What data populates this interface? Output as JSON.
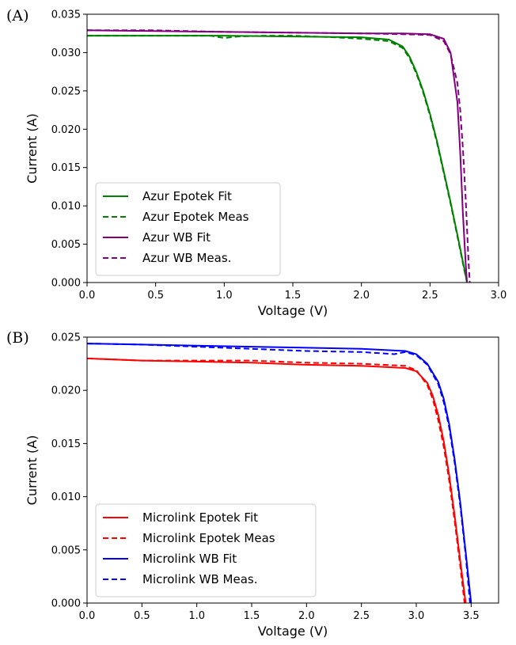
{
  "chart_data": [
    {
      "type": "line",
      "panel_label": "(A)",
      "xlabel": "Voltage (V)",
      "ylabel": "Current (A)",
      "xlim": [
        0,
        3.0
      ],
      "ylim": [
        0,
        0.035
      ],
      "xticks": [
        "0.0",
        "0.5",
        "1.0",
        "1.5",
        "2.0",
        "2.5",
        "3.0"
      ],
      "yticks": [
        "0.000",
        "0.005",
        "0.010",
        "0.015",
        "0.020",
        "0.025",
        "0.030",
        "0.035"
      ],
      "grid": false,
      "legend_position": "lower-left",
      "series": [
        {
          "name": "Azur Epotek Fit",
          "color": "#008000",
          "dash": "solid",
          "x": [
            0,
            0.5,
            1.0,
            1.5,
            2.0,
            2.2,
            2.3,
            2.35,
            2.4,
            2.45,
            2.5,
            2.55,
            2.6,
            2.65,
            2.7,
            2.75,
            2.77
          ],
          "y": [
            0.0322,
            0.0322,
            0.0322,
            0.0321,
            0.032,
            0.0317,
            0.0308,
            0.0295,
            0.0275,
            0.025,
            0.022,
            0.0185,
            0.0145,
            0.0105,
            0.0062,
            0.0018,
            0.0
          ]
        },
        {
          "name": "Azur Epotek Meas",
          "color": "#008000",
          "dash": "dashed",
          "x": [
            0,
            0.5,
            0.9,
            1.0,
            1.1,
            1.3,
            1.5,
            1.8,
            2.0,
            2.2,
            2.3,
            2.35,
            2.4,
            2.45,
            2.5,
            2.55,
            2.6,
            2.65,
            2.7,
            2.75,
            2.77
          ],
          "y": [
            0.0322,
            0.0322,
            0.0322,
            0.0319,
            0.0321,
            0.0322,
            0.0322,
            0.032,
            0.0318,
            0.0315,
            0.0306,
            0.0293,
            0.0273,
            0.0248,
            0.0218,
            0.0183,
            0.0143,
            0.0103,
            0.006,
            0.0016,
            0.0
          ]
        },
        {
          "name": "Azur WB Fit",
          "color": "#800080",
          "dash": "solid",
          "x": [
            0,
            0.5,
            1.0,
            1.5,
            2.0,
            2.3,
            2.5,
            2.6,
            2.65,
            2.7,
            2.72,
            2.74,
            2.76,
            2.77
          ],
          "y": [
            0.0329,
            0.0328,
            0.0327,
            0.0326,
            0.0325,
            0.0325,
            0.0324,
            0.0318,
            0.03,
            0.0235,
            0.017,
            0.009,
            0.0025,
            0.0
          ]
        },
        {
          "name": "Azur WB Meas.",
          "color": "#800080",
          "dash": "dashed",
          "x": [
            0,
            0.5,
            1.0,
            1.5,
            2.0,
            2.3,
            2.5,
            2.6,
            2.65,
            2.7,
            2.72,
            2.74,
            2.76,
            2.78,
            2.79
          ],
          "y": [
            0.0329,
            0.0329,
            0.0327,
            0.0326,
            0.0325,
            0.0324,
            0.0323,
            0.0315,
            0.0298,
            0.026,
            0.0225,
            0.0175,
            0.011,
            0.003,
            0.0
          ]
        }
      ]
    },
    {
      "type": "line",
      "panel_label": "(B)",
      "xlabel": "Voltage (V)",
      "ylabel": "Current (A)",
      "xlim": [
        0,
        3.75
      ],
      "ylim": [
        0,
        0.025
      ],
      "xticks": [
        "0.0",
        "0.5",
        "1.0",
        "1.5",
        "2.0",
        "2.5",
        "3.0",
        "3.5"
      ],
      "yticks": [
        "0.000",
        "0.005",
        "0.010",
        "0.015",
        "0.020",
        "0.025"
      ],
      "grid": false,
      "legend_position": "lower-left",
      "series": [
        {
          "name": "Microlink Epotek Fit",
          "color": "#ff0000",
          "dash": "solid",
          "x": [
            0,
            0.5,
            1.0,
            1.5,
            2.0,
            2.5,
            2.9,
            3.0,
            3.1,
            3.15,
            3.2,
            3.25,
            3.3,
            3.35,
            3.4,
            3.45
          ],
          "y": [
            0.023,
            0.0228,
            0.0227,
            0.0226,
            0.0224,
            0.0223,
            0.0221,
            0.0218,
            0.0207,
            0.0195,
            0.0177,
            0.0152,
            0.012,
            0.0082,
            0.004,
            0.0
          ]
        },
        {
          "name": "Microlink Epotek Meas",
          "color": "#ff0000",
          "dash": "dashed",
          "x": [
            0,
            0.5,
            1.0,
            1.5,
            2.0,
            2.5,
            2.9,
            3.0,
            3.1,
            3.15,
            3.2,
            3.25,
            3.3,
            3.35,
            3.4,
            3.44
          ],
          "y": [
            0.023,
            0.0228,
            0.0228,
            0.0228,
            0.0226,
            0.0225,
            0.0223,
            0.0219,
            0.0205,
            0.0192,
            0.0172,
            0.0147,
            0.0115,
            0.0077,
            0.0035,
            0.0
          ]
        },
        {
          "name": "Microlink WB Fit",
          "color": "#0000ff",
          "dash": "solid",
          "x": [
            0,
            0.5,
            1.0,
            1.5,
            2.0,
            2.5,
            2.9,
            3.0,
            3.1,
            3.2,
            3.25,
            3.3,
            3.35,
            3.4,
            3.45,
            3.5
          ],
          "y": [
            0.0244,
            0.0243,
            0.0242,
            0.0241,
            0.024,
            0.0239,
            0.0237,
            0.0234,
            0.0225,
            0.0208,
            0.0192,
            0.0168,
            0.0135,
            0.0095,
            0.0048,
            0.0
          ]
        },
        {
          "name": "Microlink WB Meas.",
          "color": "#0000ff",
          "dash": "dashed",
          "x": [
            0,
            0.5,
            1.0,
            1.5,
            2.0,
            2.5,
            2.8,
            2.9,
            3.0,
            3.1,
            3.2,
            3.25,
            3.3,
            3.35,
            3.4,
            3.45,
            3.49
          ],
          "y": [
            0.0244,
            0.0243,
            0.0241,
            0.0239,
            0.0237,
            0.0236,
            0.0234,
            0.0236,
            0.0233,
            0.0224,
            0.0206,
            0.0189,
            0.0165,
            0.0132,
            0.0092,
            0.0045,
            0.0
          ]
        }
      ]
    }
  ]
}
